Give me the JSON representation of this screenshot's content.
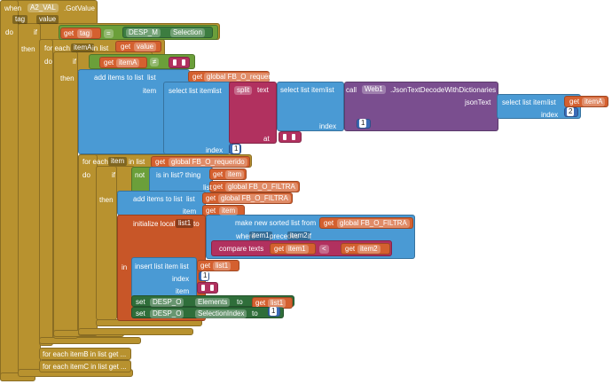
{
  "blocks": [
    [
      "when",
      "A2_VAL",
      ".GotValue",
      "tag",
      "value",
      "do"
    ],
    [
      "if",
      "then"
    ],
    [
      "get",
      "tag",
      "=",
      "DESP_M",
      "Selection"
    ],
    [
      "for each",
      "itemA",
      "in list",
      "do"
    ],
    [
      "get",
      "value"
    ],
    [
      "if",
      "then"
    ],
    [
      "get",
      "itemA",
      "≠"
    ],
    [
      "add items to list",
      "list",
      "item"
    ],
    [
      "get",
      "global FB_O_requerido"
    ],
    [
      "select list item",
      "list",
      "index",
      1
    ],
    [
      "split",
      "text",
      "at"
    ],
    [
      "select list item",
      "list",
      "index",
      1
    ],
    [
      "call",
      "Web1",
      ".JsonTextDecodeWithDictionaries",
      "jsonText"
    ],
    [
      "select list item",
      "list",
      "index",
      2
    ],
    [
      "get",
      "itemA"
    ],
    [
      "for each",
      "item",
      "in list",
      "do"
    ],
    [
      "get",
      "global FB_O_requerido"
    ],
    [
      "if",
      "then"
    ],
    [
      "not"
    ],
    [
      "is in list? thing",
      "list"
    ],
    [
      "get",
      "item"
    ],
    [
      "get",
      "global FB_O_FILTRA"
    ],
    [
      "add items to list",
      "list",
      "item"
    ],
    [
      "get",
      "global FB_O_FILTRA"
    ],
    [
      "get",
      "item"
    ],
    [
      "initialize local",
      "list1",
      "to",
      "in"
    ],
    [
      "make new sorted list from",
      "where",
      "item1",
      "precedes",
      "item2",
      "if"
    ],
    [
      "get",
      "global FB_O_FILTRA"
    ],
    [
      "compare texts",
      "<"
    ],
    [
      "get",
      "item1"
    ],
    [
      "get",
      "item2"
    ],
    [
      "insert list item",
      "list",
      "index",
      1,
      "item"
    ],
    [
      "get",
      "list1"
    ],
    [
      "set",
      "DESP_O",
      "Elements",
      "to"
    ],
    [
      "get",
      "list1"
    ],
    [
      "set",
      "DESP_O",
      "SelectionIndex",
      "to",
      1
    ],
    [
      "for each itemB in list get ..."
    ],
    [
      "for each itemC in list get ..."
    ]
  ]
}
